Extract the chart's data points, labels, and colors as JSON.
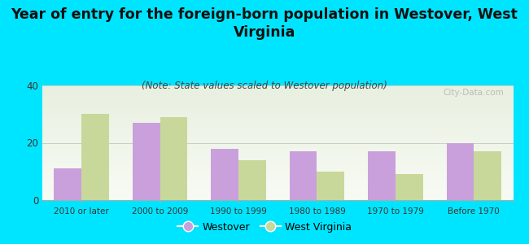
{
  "categories": [
    "2010 or later",
    "2000 to 2009",
    "1990 to 1999",
    "1980 to 1989",
    "1970 to 1979",
    "Before 1970"
  ],
  "westover": [
    11,
    27,
    18,
    17,
    17,
    20
  ],
  "west_virginia": [
    30,
    29,
    14,
    10,
    9,
    17
  ],
  "westover_color": "#c9a0dc",
  "wv_color": "#c8d89a",
  "title": "Year of entry for the foreign-born population in Westover, West\nVirginia",
  "subtitle": "(Note: State values scaled to Westover population)",
  "legend_westover": "Westover",
  "legend_wv": "West Virginia",
  "ylim": [
    0,
    40
  ],
  "yticks": [
    0,
    20,
    40
  ],
  "background_color": "#00e5ff",
  "plot_bg_top": "#e8f0e0",
  "plot_bg_bottom": "#f8fbf4",
  "title_fontsize": 12.5,
  "subtitle_fontsize": 8.5,
  "watermark": "City-Data.com"
}
